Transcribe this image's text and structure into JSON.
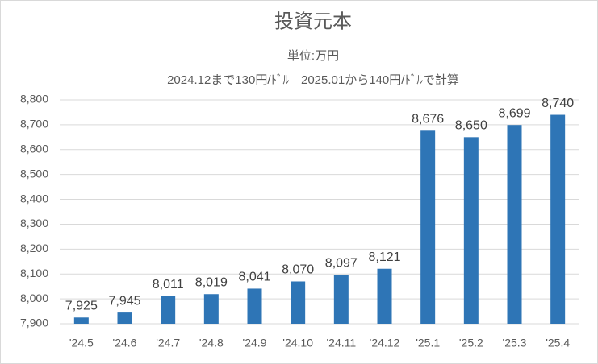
{
  "chart_data": {
    "type": "bar",
    "title": "投資元本",
    "subtitle": "単位:万円",
    "annotation": "2024.12まで130円/ﾄﾞﾙ　2025.01から140円/ﾄﾞﾙで計算",
    "categories": [
      "'24.5",
      "'24.6",
      "'24.7",
      "'24.8",
      "'24.9",
      "'24.10",
      "'24.11",
      "'24.12",
      "'25.1",
      "'25.2",
      "'25.3",
      "'25.4"
    ],
    "values": [
      7925,
      7945,
      8011,
      8019,
      8041,
      8070,
      8097,
      8121,
      8676,
      8650,
      8699,
      8740
    ],
    "value_labels": [
      "7,925",
      "7,945",
      "8,011",
      "8,019",
      "8,041",
      "8,070",
      "8,097",
      "8,121",
      "8,676",
      "8,650",
      "8,699",
      "8,740"
    ],
    "color": "#2e75b6",
    "ylim": [
      7900,
      8800
    ],
    "yticks": [
      {
        "value": 7900,
        "label": "7,900"
      },
      {
        "value": 8000,
        "label": "8,000"
      },
      {
        "value": 8100,
        "label": "8,100"
      },
      {
        "value": 8200,
        "label": "8,200"
      },
      {
        "value": 8300,
        "label": "8,300"
      },
      {
        "value": 8400,
        "label": "8,400"
      },
      {
        "value": 8500,
        "label": "8,500"
      },
      {
        "value": 8600,
        "label": "8,600"
      },
      {
        "value": 8700,
        "label": "8,700"
      },
      {
        "value": 8800,
        "label": "8,800"
      }
    ],
    "grid": true
  }
}
